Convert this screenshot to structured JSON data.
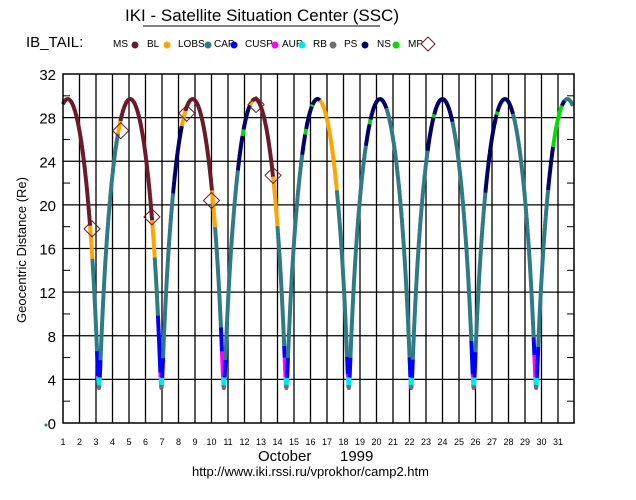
{
  "chart_data": {
    "type": "line",
    "title": "IKI - Satellite Situation Center (SSC)",
    "satellite_label": "IB_TAIL:",
    "ylabel": "Geocentric Distance (Re)",
    "xlabel_month": "October",
    "xlabel_year": "1999",
    "url": "http://www.iki.rssi.ru/vprokhor/camp2.htm",
    "ylim": [
      0,
      32
    ],
    "xlim": [
      1,
      32
    ],
    "yticks": [
      "0",
      "4",
      "8",
      "12",
      "16",
      "20",
      "24",
      "28",
      "32"
    ],
    "xticks": [
      "1",
      "2",
      "3",
      "4",
      "5",
      "6",
      "7",
      "8",
      "9",
      "10",
      "11",
      "12",
      "13",
      "14",
      "15",
      "16",
      "17",
      "18",
      "19",
      "20",
      "21",
      "22",
      "23",
      "24",
      "25",
      "26",
      "27",
      "28",
      "29",
      "30",
      "31"
    ],
    "grid": true,
    "legend_placement": "top",
    "legend": [
      {
        "key": "MS",
        "label": "MS",
        "color": "#6b1a2a",
        "marker": "dot"
      },
      {
        "key": "BL",
        "label": "BL",
        "color": "#ffa500",
        "marker": "dot"
      },
      {
        "key": "LOBS",
        "label": "LOBS",
        "color": "#2e7b87",
        "marker": "dot"
      },
      {
        "key": "CAP",
        "label": "CAP",
        "color": "#0000ff",
        "marker": "dot"
      },
      {
        "key": "CUSP",
        "label": "CUSP",
        "color": "#ff00ff",
        "marker": "dot"
      },
      {
        "key": "AUR",
        "label": "AUR",
        "color": "#00e8f0",
        "marker": "dot"
      },
      {
        "key": "RB",
        "label": "RB",
        "color": "#707070",
        "marker": "dot"
      },
      {
        "key": "PS",
        "label": "PS",
        "color": "#000066",
        "marker": "dot"
      },
      {
        "key": "NS",
        "label": "NS",
        "color": "#00dd00",
        "marker": "dot"
      },
      {
        "key": "MP",
        "label": "MP",
        "color": "#6b1a2a",
        "marker": "diamond"
      }
    ],
    "orbit": {
      "perigee_re": 3.2,
      "apogee_re": 29.7,
      "period_days": 3.785,
      "first_perigee_day": 3.18
    },
    "default_region": "LOBS",
    "region_segments": [
      [
        1.0,
        2.64,
        "MS"
      ],
      [
        2.64,
        2.78,
        "BL"
      ],
      [
        4.33,
        4.48,
        "BL"
      ],
      [
        4.48,
        6.4,
        "MS"
      ],
      [
        6.4,
        6.56,
        "BL"
      ],
      [
        7.67,
        8.2,
        "PS"
      ],
      [
        8.2,
        8.42,
        "BL"
      ],
      [
        8.42,
        10.03,
        "MS"
      ],
      [
        10.03,
        10.22,
        "BL"
      ],
      [
        11.6,
        11.88,
        "PS"
      ],
      [
        11.88,
        11.95,
        "NS"
      ],
      [
        11.95,
        12.33,
        "PS"
      ],
      [
        12.33,
        12.47,
        "BL"
      ],
      [
        12.47,
        13.73,
        "MS"
      ],
      [
        13.73,
        14.0,
        "BL"
      ],
      [
        15.5,
        15.68,
        "PS"
      ],
      [
        15.68,
        15.74,
        "NS"
      ],
      [
        15.74,
        16.08,
        "PS"
      ],
      [
        16.08,
        16.13,
        "NS"
      ],
      [
        16.13,
        16.57,
        "PS"
      ],
      [
        16.57,
        17.6,
        "BL"
      ],
      [
        19.36,
        19.58,
        "PS"
      ],
      [
        19.58,
        19.64,
        "NS"
      ],
      [
        19.64,
        20.6,
        "PS"
      ],
      [
        23.1,
        23.45,
        "PS"
      ],
      [
        23.45,
        23.5,
        "NS"
      ],
      [
        23.5,
        24.6,
        "PS"
      ],
      [
        26.6,
        27.28,
        "PS"
      ],
      [
        27.28,
        27.33,
        "NS"
      ],
      [
        27.33,
        28.27,
        "PS"
      ],
      [
        30.4,
        30.7,
        "PS"
      ],
      [
        30.7,
        31.24,
        "NS"
      ],
      [
        31.24,
        31.4,
        "PS"
      ]
    ],
    "perigee_passes": [
      {
        "in_cap": 6.5,
        "in_cusp": 4.3,
        "out_cap": 5.8
      },
      {
        "in_cap": 9.8,
        "in_cusp": 4.6,
        "out_cap": 6.0
      },
      {
        "in_cap": 8.7,
        "in_cusp": 6.5,
        "out_cap": 5.8
      },
      {
        "in_cap": 7.0,
        "in_cusp": 6.0,
        "out_cap": 6.0
      },
      {
        "in_cap": 6.0,
        "in_cusp": 4.5,
        "out_cap": 6.0
      },
      {
        "in_cap": 6.0,
        "in_cusp": 4.0,
        "out_cap": 5.8
      },
      {
        "in_cap": 7.5,
        "in_cusp": 4.5,
        "out_cap": 6.5
      },
      {
        "in_cap": 7.8,
        "in_cusp": 6.2,
        "out_cap": 7.0
      }
    ],
    "aur_below_re": 4.2,
    "rb_below_re": 3.5,
    "magnetopause_crossings": [
      {
        "day": 2.76,
        "re": 17.8
      },
      {
        "day": 4.5,
        "re": 26.8
      },
      {
        "day": 6.39,
        "re": 18.9
      },
      {
        "day": 8.5,
        "re": 28.4
      },
      {
        "day": 10.0,
        "re": 20.4
      },
      {
        "day": 12.7,
        "re": 29.2
      },
      {
        "day": 13.73,
        "re": 22.7
      }
    ]
  }
}
